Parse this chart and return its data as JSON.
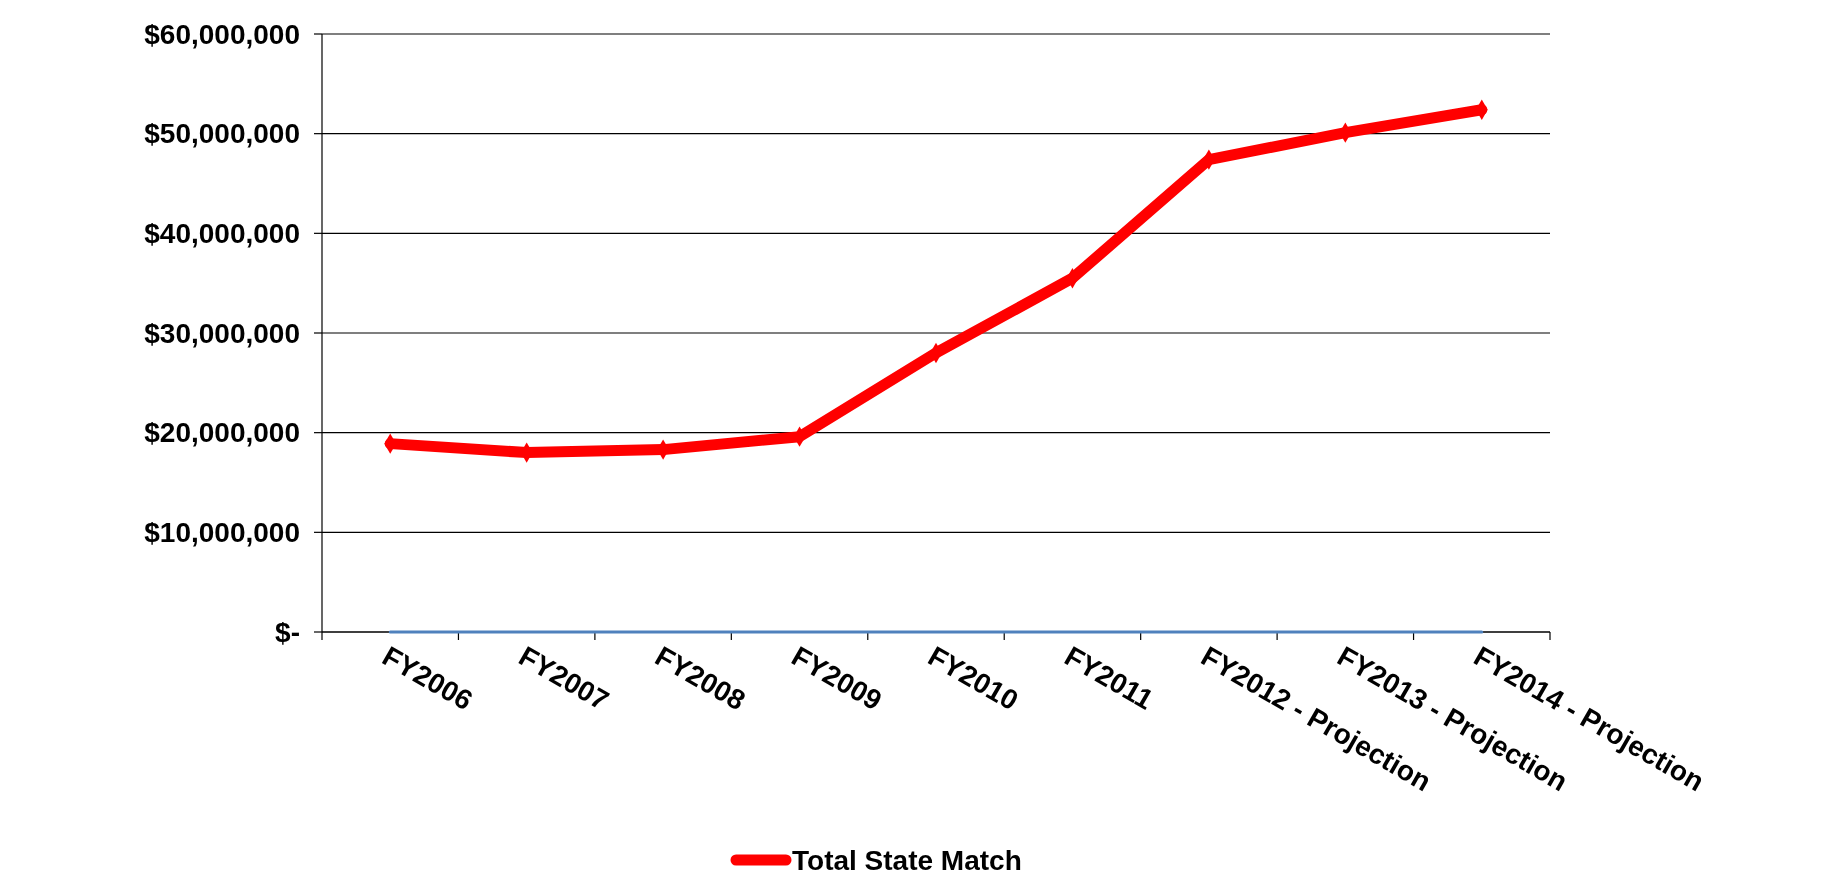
{
  "chart_data": {
    "type": "line",
    "categories": [
      "FY2006",
      "FY2007",
      "FY2008",
      "FY2009",
      "FY2010",
      "FY2011",
      "FY2012 - Projection",
      "FY2013 - Projection",
      "FY2014 - Projection"
    ],
    "series": [
      {
        "name": "Total State Match",
        "color": "#ff0000",
        "values": [
          18900000,
          18000000,
          18300000,
          19600000,
          28000000,
          35500000,
          47400000,
          50100000,
          52400000
        ]
      },
      {
        "color": "#4f81bd",
        "marker": "none",
        "values": [
          0,
          0,
          0,
          0,
          0,
          0,
          0,
          0,
          0
        ]
      }
    ],
    "ylim": [
      0,
      60000000
    ],
    "yticks": [
      {
        "value": 0,
        "label": "$-"
      },
      {
        "value": 10000000,
        "label": "$10,000,000"
      },
      {
        "value": 20000000,
        "label": "$20,000,000"
      },
      {
        "value": 30000000,
        "label": "$30,000,000"
      },
      {
        "value": 40000000,
        "label": "$40,000,000"
      },
      {
        "value": 50000000,
        "label": "$50,000,000"
      },
      {
        "value": 60000000,
        "label": "$60,000,000"
      }
    ],
    "grid": "y",
    "legend": "bottom",
    "marker": "diamond",
    "line_style": "solid"
  }
}
